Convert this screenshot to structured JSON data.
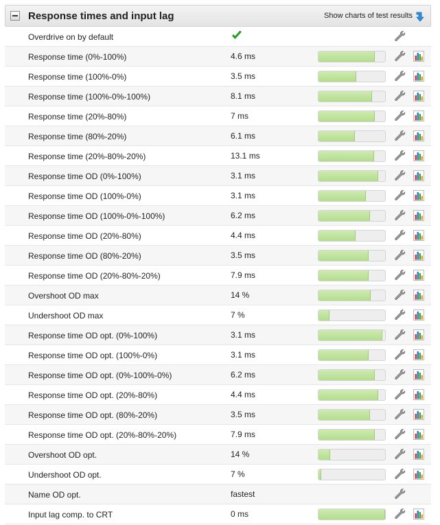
{
  "section": {
    "title": "Response times and input lag",
    "show_charts_label": "Show charts of test results"
  },
  "rows": [
    {
      "label": "Overdrive on by default",
      "value": "",
      "check": true,
      "bar": null
    },
    {
      "label": "Response time (0%-100%)",
      "value": "4.6 ms",
      "bar": 0.85
    },
    {
      "label": "Response time (100%-0%)",
      "value": "3.5 ms",
      "bar": 0.57
    },
    {
      "label": "Response time (100%-0%-100%)",
      "value": "8.1 ms",
      "bar": 0.8
    },
    {
      "label": "Response time (20%-80%)",
      "value": "7 ms",
      "bar": 0.85
    },
    {
      "label": "Response time (80%-20%)",
      "value": "6.1 ms",
      "bar": 0.55
    },
    {
      "label": "Response time (20%-80%-20%)",
      "value": "13.1 ms",
      "bar": 0.84
    },
    {
      "label": "Response time OD (0%-100%)",
      "value": "3.1 ms",
      "bar": 0.9
    },
    {
      "label": "Response time OD (100%-0%)",
      "value": "3.1 ms",
      "bar": 0.71
    },
    {
      "label": "Response time OD (100%-0%-100%)",
      "value": "6.2 ms",
      "bar": 0.77
    },
    {
      "label": "Response time OD (20%-80%)",
      "value": "4.4 ms",
      "bar": 0.56
    },
    {
      "label": "Response time OD (80%-20%)",
      "value": "3.5 ms",
      "bar": 0.75
    },
    {
      "label": "Response time OD (20%-80%-20%)",
      "value": "7.9 ms",
      "bar": 0.75
    },
    {
      "label": "Overshoot OD max",
      "value": "14 %",
      "bar": 0.78
    },
    {
      "label": "Undershoot OD max",
      "value": "7 %",
      "bar": 0.16
    },
    {
      "label": "Response time OD opt. (0%-100%)",
      "value": "3.1 ms",
      "bar": 0.96
    },
    {
      "label": "Response time OD opt. (100%-0%)",
      "value": "3.1 ms",
      "bar": 0.75
    },
    {
      "label": "Response time OD opt. (0%-100%-0%)",
      "value": "6.2 ms",
      "bar": 0.85
    },
    {
      "label": "Response time OD opt. (20%-80%)",
      "value": "4.4 ms",
      "bar": 0.9
    },
    {
      "label": "Response time OD opt. (80%-20%)",
      "value": "3.5 ms",
      "bar": 0.77
    },
    {
      "label": "Response time OD opt. (20%-80%-20%)",
      "value": "7.9 ms",
      "bar": 0.85
    },
    {
      "label": "Overshoot OD opt.",
      "value": "14 %",
      "bar": 0.18
    },
    {
      "label": "Undershoot OD opt.",
      "value": "7 %",
      "bar": 0.04
    },
    {
      "label": "Name OD opt.",
      "value": "fastest",
      "bar": null,
      "no_chart": true
    },
    {
      "label": "Input lag comp. to CRT",
      "value": "0 ms",
      "bar": 1.0
    }
  ],
  "icons": {
    "toggle": "collapse-icon",
    "show_charts": "download-arrow-icon",
    "check": "checkmark-icon",
    "wrench": "wrench-icon",
    "chart": "bar-chart-icon"
  },
  "colors": {
    "bar_fill": "#b3dd8c",
    "bar_track": "#eeeeee",
    "check": "#2aa52a",
    "arrow": "#2f8fdc"
  }
}
